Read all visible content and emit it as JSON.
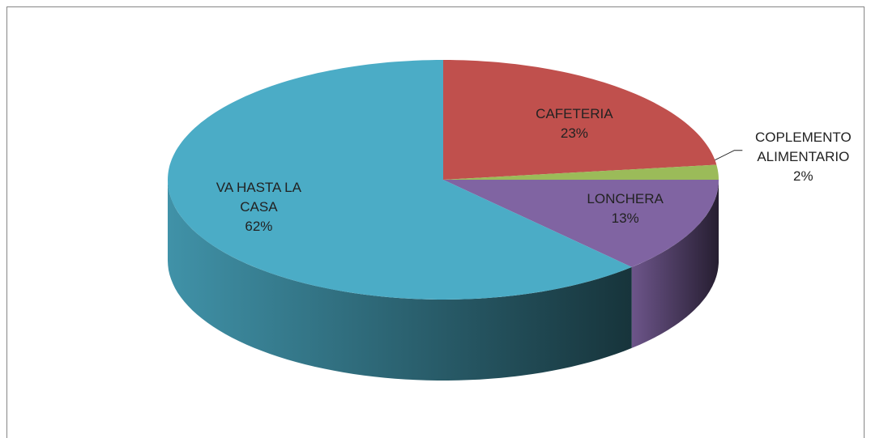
{
  "chart_data": {
    "type": "pie3d",
    "categories": [
      "CAFETERIA",
      "COPLEMENTO ALIMENTARIO",
      "LONCHERA",
      "VA HASTA LA CASA"
    ],
    "values": [
      23,
      2,
      13,
      62
    ],
    "value_labels": [
      "23%",
      "2%",
      "13%",
      "62%"
    ],
    "colors": [
      "#c0504d",
      "#9bbb59",
      "#8064a2",
      "#4bacc6"
    ]
  }
}
